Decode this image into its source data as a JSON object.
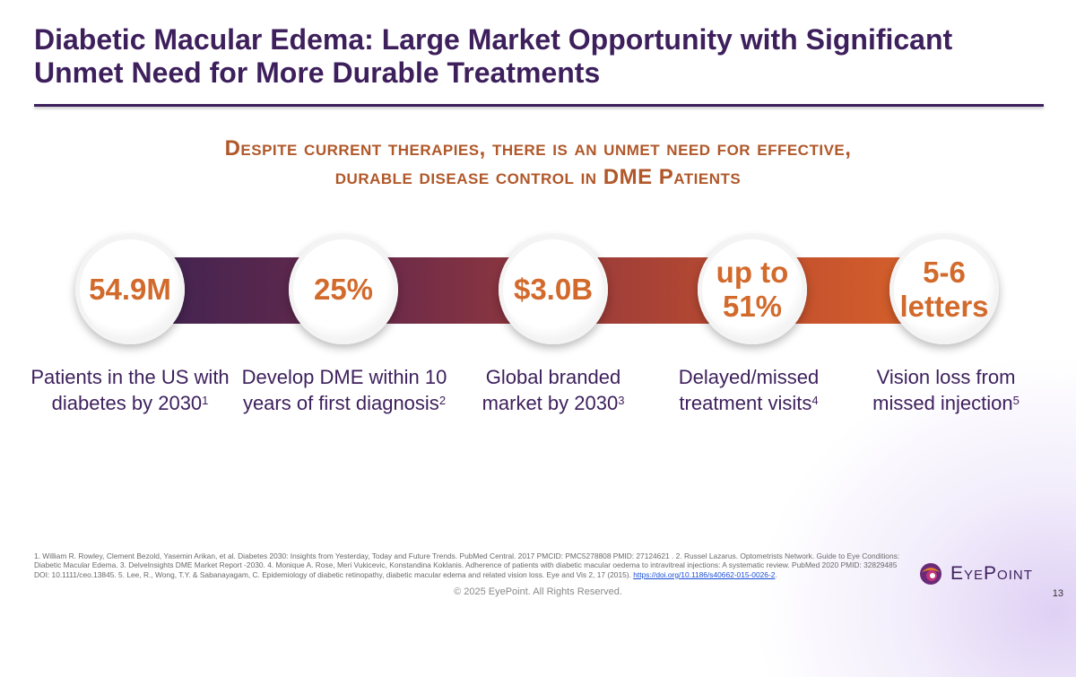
{
  "slide": {
    "title": "Diabetic Macular Edema: Large Market Opportunity with Significant Unmet Need for More Durable Treatments",
    "subtitle_line1": "Despite current therapies, there is an unmet need for effective,",
    "subtitle_line2": "durable disease control in DME Patients",
    "page_number": "13"
  },
  "colors": {
    "title": "#3d1f5c",
    "accent": "#d26a2c",
    "subtitle": "#b0582a"
  },
  "stats": [
    {
      "value": "54.9M",
      "caption": "Patients in the US with diabetes by 2030",
      "ref": "1"
    },
    {
      "value": "25%",
      "caption": "Develop DME within 10 years of first diagnosis",
      "ref": "2"
    },
    {
      "value": "$3.0B",
      "caption": "Global branded market by 2030",
      "ref": "3"
    },
    {
      "value": "up to 51%",
      "caption": "Delayed/missed treatment visits",
      "ref": "4"
    },
    {
      "value": "5-6 letters",
      "caption": "Vision loss from missed injection",
      "ref": "5"
    }
  ],
  "references": {
    "text": "1. William R. Rowley, Clement Bezold, Yasemin Arikan, et al. Diabetes 2030: Insights from Yesterday, Today and Future Trends. PubMed Central. 2017 PMCID: PMC5278808 PMID: 27124621 . 2. Russel Lazarus. Optometrists Network. Guide to Eye Conditions: Diabetic Macular Edema. 3. DelveInsights DME Market Report -2030. 4. Monique A. Rose, Meri Vukicevic, Konstandina Koklanis. Adherence of patients with diabetic macular oedema to intravitreal injections: A systematic review. PubMed 2020 PMID: 32829485 DOI: 10.1111/ceo.13845. 5. Lee, R., Wong, T.Y. & Sabanayagam, C. Epidemiology of diabetic retinopathy, diabetic macular edema and related vision loss. Eye and Vis 2, 17 (2015).",
    "link": "https://doi.org/10.1186/s40662-015-0026-2"
  },
  "footer": {
    "copyright": "© 2025 EyePoint. All Rights Reserved.",
    "logo_text": "EyePoint"
  }
}
